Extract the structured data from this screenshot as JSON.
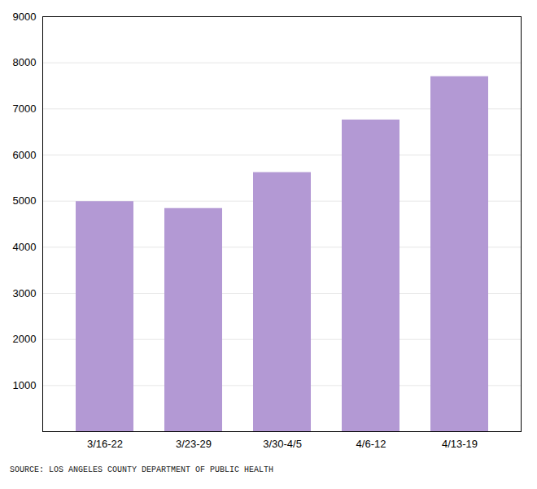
{
  "chart_data": {
    "type": "bar",
    "categories": [
      "3/16-22",
      "3/23-29",
      "3/30-4/5",
      "4/6-12",
      "4/13-19"
    ],
    "values": [
      4990,
      4840,
      5620,
      6760,
      7700
    ],
    "color": "#b399d4",
    "ylim": [
      0,
      9000
    ],
    "yticks": [
      1000,
      2000,
      3000,
      4000,
      5000,
      6000,
      7000,
      8000,
      9000
    ],
    "grid": true,
    "annotations": [
      "SOURCE: LOS ANGELES COUNTY DEPARTMENT OF PUBLIC HEALTH"
    ]
  }
}
